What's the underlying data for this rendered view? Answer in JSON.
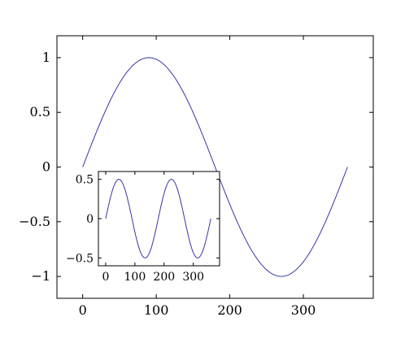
{
  "chart_data": [
    {
      "id": "main",
      "type": "line",
      "title": "",
      "xlabel": "",
      "ylabel": "",
      "xlim": [
        -35,
        395
      ],
      "ylim": [
        -1.2,
        1.2
      ],
      "xticks": [
        0,
        100,
        200,
        300
      ],
      "yticks": [
        -1,
        -0.5,
        0,
        0.5,
        1
      ],
      "xtick_labels": [
        "0",
        "100",
        "200",
        "300"
      ],
      "ytick_labels": [
        "−1",
        "−0.5",
        "0",
        "0.5",
        "1"
      ],
      "grid": false,
      "series": [
        {
          "function": "sin(x°)",
          "x_range": [
            0,
            360
          ],
          "color": "#3535a8"
        }
      ]
    },
    {
      "id": "inset",
      "type": "line",
      "title": "",
      "xlabel": "",
      "ylabel": "",
      "xlim": [
        -25,
        390
      ],
      "ylim": [
        -0.6,
        0.6
      ],
      "xticks": [
        0,
        100,
        200,
        300
      ],
      "yticks": [
        -0.5,
        0,
        0.5
      ],
      "xtick_labels": [
        "0",
        "100",
        "200",
        "300"
      ],
      "ytick_labels": [
        "−0.5",
        "0",
        "0.5"
      ],
      "grid": false,
      "series": [
        {
          "function": "0.5·sin(2x°)",
          "x_range": [
            0,
            360
          ],
          "color": "#3535a8"
        }
      ]
    }
  ]
}
